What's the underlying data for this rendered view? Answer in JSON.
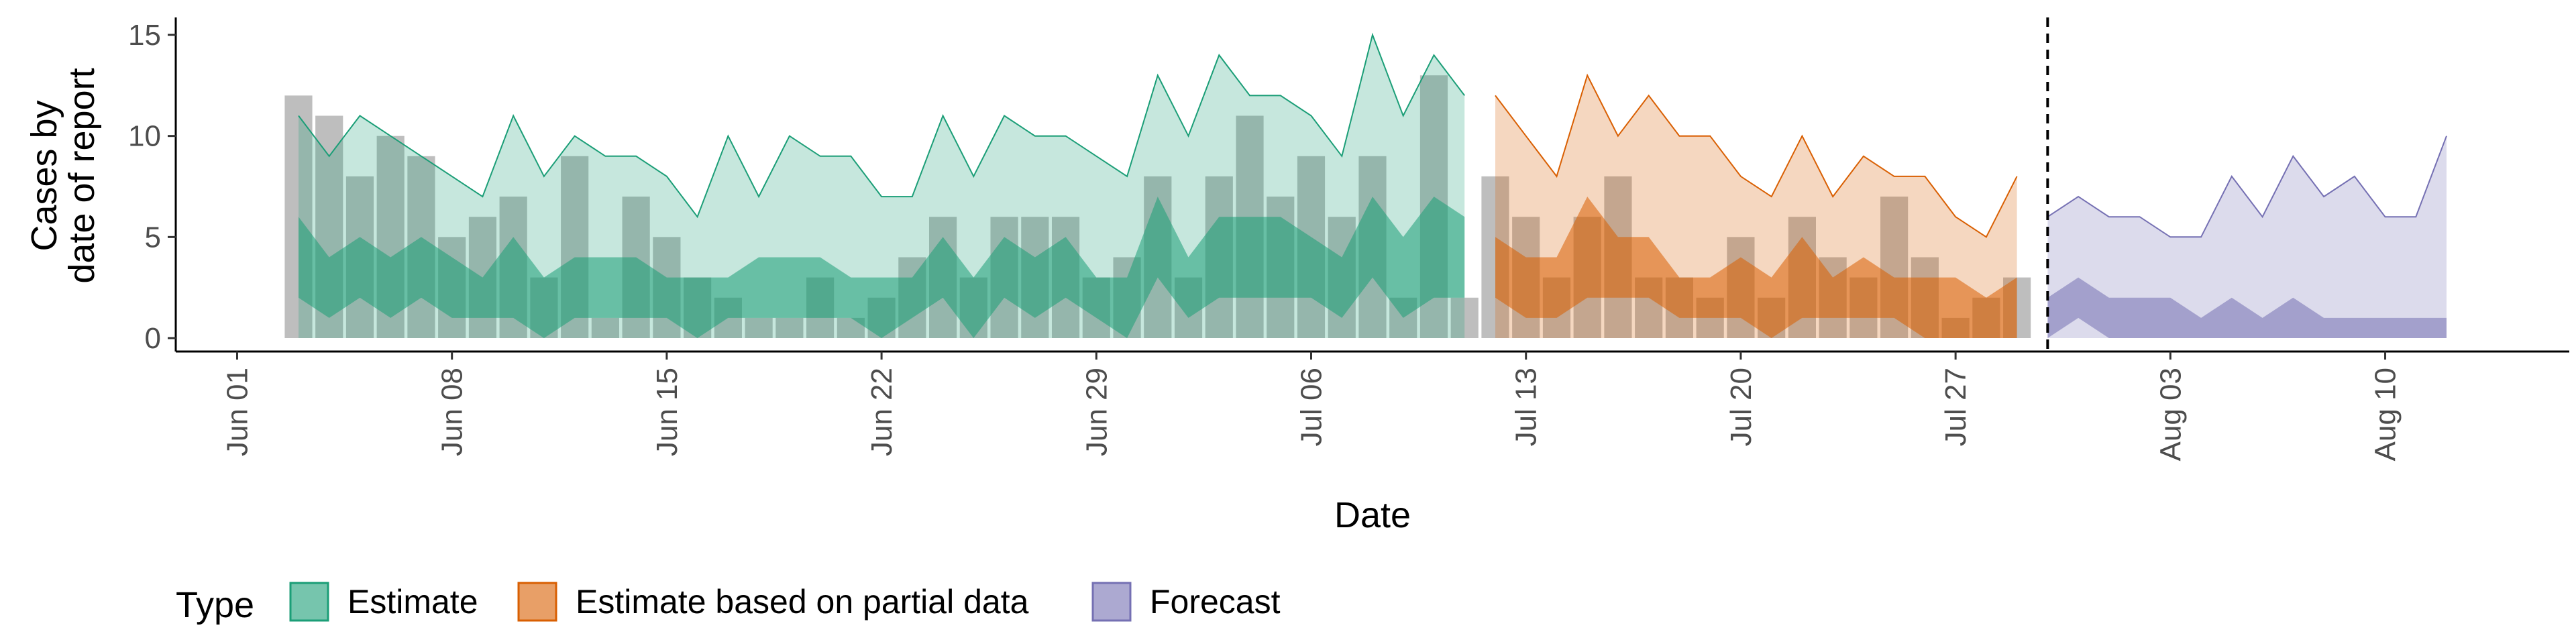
{
  "chart_data": {
    "type": "area",
    "xlabel": "Date",
    "ylabel_lines": [
      "Cases by",
      "date of report"
    ],
    "ylim": [
      0,
      15
    ],
    "y_ticks": [
      0,
      5,
      10,
      15
    ],
    "x_ticks": [
      "Jun 01",
      "Jun 08",
      "Jun 15",
      "Jun 22",
      "Jun 29",
      "Jul 06",
      "Jul 13",
      "Jul 20",
      "Jul 27",
      "Aug 03",
      "Aug 10"
    ],
    "x_tick_day_index": [
      0,
      7,
      14,
      21,
      28,
      35,
      42,
      49,
      56,
      63,
      70
    ],
    "x_domain_days": [
      -2,
      76
    ],
    "vline_day": 59,
    "bar_color": "#bebebe",
    "bars": {
      "dates": [
        "Jun 03",
        "Jun 04",
        "Jun 05",
        "Jun 06",
        "Jun 07",
        "Jun 08",
        "Jun 09",
        "Jun 10",
        "Jun 11",
        "Jun 12",
        "Jun 13",
        "Jun 14",
        "Jun 15",
        "Jun 16",
        "Jun 17",
        "Jun 18",
        "Jun 19",
        "Jun 20",
        "Jun 21",
        "Jun 22",
        "Jun 23",
        "Jun 24",
        "Jun 25",
        "Jun 26",
        "Jun 27",
        "Jun 28",
        "Jun 29",
        "Jun 30",
        "Jul 01",
        "Jul 02",
        "Jul 03",
        "Jul 04",
        "Jul 05",
        "Jul 06",
        "Jul 07",
        "Jul 08",
        "Jul 09",
        "Jul 10",
        "Jul 11",
        "Jul 12",
        "Jul 13",
        "Jul 14",
        "Jul 15",
        "Jul 16",
        "Jul 17",
        "Jul 18",
        "Jul 19",
        "Jul 20",
        "Jul 21",
        "Jul 22",
        "Jul 23",
        "Jul 24",
        "Jul 25",
        "Jul 26",
        "Jul 27",
        "Jul 28",
        "Jul 29"
      ],
      "values": [
        12,
        11,
        8,
        10,
        9,
        5,
        6,
        7,
        3,
        9,
        1,
        7,
        5,
        3,
        2,
        1,
        1,
        3,
        1,
        2,
        4,
        6,
        3,
        6,
        6,
        6,
        3,
        4,
        8,
        3,
        8,
        11,
        7,
        9,
        6,
        9,
        2,
        13,
        2,
        8,
        6,
        3,
        6,
        8,
        3,
        3,
        2,
        5,
        2,
        6,
        4,
        3,
        7,
        4,
        1,
        2,
        3
      ]
    },
    "series": [
      {
        "name": "Estimate",
        "color": "#1b9e77",
        "start_date": "Jun 03",
        "outer_upper": [
          11,
          9,
          11,
          10,
          9,
          8,
          7,
          11,
          8,
          10,
          9,
          9,
          8,
          6,
          10,
          7,
          10,
          9,
          9,
          7,
          7,
          11,
          8,
          11,
          10,
          10,
          9,
          8,
          13,
          10,
          14,
          12,
          12,
          11,
          9,
          15,
          11,
          14,
          12
        ],
        "outer_lower": [
          0,
          0,
          0,
          0,
          0,
          0,
          0,
          0,
          0,
          0,
          0,
          0,
          0,
          0,
          0,
          0,
          0,
          0,
          0,
          0,
          0,
          0,
          0,
          0,
          0,
          0,
          0,
          0,
          0,
          0,
          0,
          0,
          0,
          0,
          0,
          0,
          0,
          0,
          0
        ],
        "inner_upper": [
          6,
          4,
          5,
          4,
          5,
          4,
          3,
          5,
          3,
          4,
          4,
          4,
          3,
          3,
          3,
          4,
          4,
          4,
          3,
          3,
          3,
          5,
          3,
          5,
          4,
          5,
          3,
          3,
          7,
          4,
          6,
          6,
          6,
          5,
          4,
          7,
          5,
          7,
          6
        ],
        "inner_lower": [
          2,
          1,
          2,
          1,
          2,
          1,
          1,
          1,
          0,
          1,
          1,
          1,
          1,
          0,
          1,
          1,
          1,
          1,
          1,
          0,
          1,
          2,
          0,
          2,
          1,
          2,
          1,
          0,
          3,
          1,
          2,
          2,
          2,
          2,
          1,
          3,
          1,
          2,
          2
        ]
      },
      {
        "name": "Estimate based on partial data",
        "color": "#d95f02",
        "start_date": "Jul 12",
        "outer_upper": [
          12,
          10,
          8,
          13,
          10,
          12,
          10,
          10,
          8,
          7,
          10,
          7,
          9,
          8,
          8,
          6,
          5,
          8
        ],
        "outer_lower": [
          0,
          0,
          0,
          0,
          0,
          0,
          0,
          0,
          0,
          0,
          0,
          0,
          0,
          0,
          0,
          0,
          0,
          0
        ],
        "inner_upper": [
          5,
          4,
          4,
          7,
          5,
          5,
          3,
          3,
          4,
          3,
          5,
          3,
          4,
          3,
          3,
          3,
          2,
          3
        ],
        "inner_lower": [
          2,
          1,
          1,
          2,
          2,
          2,
          1,
          1,
          1,
          0,
          1,
          1,
          1,
          1,
          0,
          0,
          0,
          0
        ]
      },
      {
        "name": "Forecast",
        "color": "#7570b3",
        "start_date": "Jul 30",
        "outer_upper": [
          6,
          7,
          6,
          6,
          5,
          5,
          8,
          6,
          9,
          7,
          8,
          6,
          6,
          10
        ],
        "outer_lower": [
          0,
          0,
          0,
          0,
          0,
          0,
          0,
          0,
          0,
          0,
          0,
          0,
          0,
          0
        ],
        "inner_upper": [
          2,
          3,
          2,
          2,
          2,
          1,
          2,
          1,
          2,
          1,
          1,
          1,
          1,
          1
        ],
        "inner_lower": [
          0,
          1,
          0,
          0,
          0,
          0,
          0,
          0,
          0,
          0,
          0,
          0,
          0,
          0
        ]
      }
    ],
    "legend": {
      "title": "Type",
      "position": "bottom-left",
      "items": [
        "Estimate",
        "Estimate based on partial data",
        "Forecast"
      ]
    },
    "grid": false
  }
}
